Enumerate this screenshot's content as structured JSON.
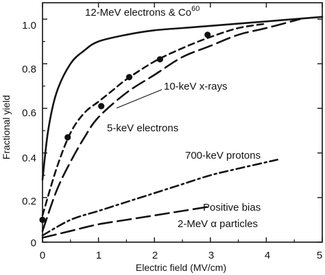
{
  "chart_data": {
    "type": "line",
    "xlabel": "Electric field (MV/cm)",
    "ylabel": "Fractional yield",
    "xlim": [
      0,
      5
    ],
    "ylim": [
      0,
      1.0
    ],
    "xticks": [
      0,
      1,
      2,
      3,
      4,
      5
    ],
    "xtick_labels": [
      "0",
      "1",
      "2",
      "3",
      "4",
      "5"
    ],
    "yticks": [
      0,
      0.2,
      0.4,
      0.6,
      0.8,
      1.0
    ],
    "ytick_labels": [
      "0",
      "0.2",
      "0.4",
      "0.6",
      "0.8",
      "1.0"
    ],
    "grid": false,
    "series": [
      {
        "name": "12-MeV electrons & Co",
        "name_superscript": "60",
        "style": "solid",
        "x": [
          0,
          0.1,
          0.25,
          0.5,
          0.75,
          1.0,
          1.5,
          2.0,
          2.5,
          3.0,
          4.0,
          5.0
        ],
        "y": [
          0.28,
          0.5,
          0.67,
          0.8,
          0.86,
          0.9,
          0.93,
          0.95,
          0.96,
          0.97,
          0.99,
          1.01
        ]
      },
      {
        "name": "10-keV x-rays",
        "style": "dashed",
        "x": [
          0,
          0.25,
          0.5,
          0.75,
          1.0,
          1.25,
          1.5,
          2.0,
          2.5,
          3.0,
          3.5,
          4.0
        ],
        "y": [
          0.12,
          0.33,
          0.49,
          0.58,
          0.63,
          0.68,
          0.73,
          0.81,
          0.87,
          0.92,
          0.96,
          0.98
        ],
        "points": {
          "x": [
            0,
            0.45,
            1.05,
            1.55,
            2.1,
            2.95
          ],
          "y": [
            0.1,
            0.47,
            0.61,
            0.74,
            0.82,
            0.93
          ]
        }
      },
      {
        "name": "5-keV electrons",
        "style": "long-dash",
        "x": [
          0,
          0.25,
          0.5,
          0.75,
          1.0,
          1.5,
          2.0,
          2.5,
          3.0,
          3.5,
          4.0,
          4.6
        ],
        "y": [
          0.05,
          0.23,
          0.36,
          0.47,
          0.56,
          0.67,
          0.75,
          0.83,
          0.88,
          0.93,
          0.96,
          1.0
        ]
      },
      {
        "name": "700-keV protons",
        "style": "dash-dot",
        "x": [
          0,
          0.5,
          1.0,
          1.5,
          2.0,
          2.5,
          3.0,
          3.5,
          4.2
        ],
        "y": [
          0.03,
          0.1,
          0.14,
          0.18,
          0.22,
          0.26,
          0.3,
          0.33,
          0.37
        ]
      },
      {
        "name": "2-MeV α particles",
        "style": "long-dash",
        "x": [
          0,
          0.5,
          1.0,
          1.5,
          2.0,
          2.5,
          3.0
        ],
        "y": [
          0.02,
          0.05,
          0.08,
          0.1,
          0.12,
          0.14,
          0.16
        ]
      }
    ],
    "annotations": [
      {
        "text": "12-MeV electrons & Co",
        "superscript": "60"
      },
      {
        "text": "10-keV x-rays"
      },
      {
        "text": "5-keV electrons"
      },
      {
        "text": "700-keV protons"
      },
      {
        "text": "Positive bias"
      },
      {
        "text": "2-MeV α particles"
      }
    ]
  }
}
